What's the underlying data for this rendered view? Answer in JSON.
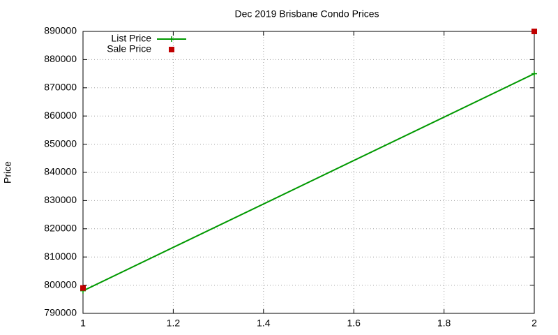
{
  "chart_data": {
    "type": "line",
    "title": "Dec 2019 Brisbane Condo Prices",
    "ylabel": "Price",
    "x": [
      1,
      2
    ],
    "series": [
      {
        "name": "List Price",
        "color": "#009900",
        "style": "linespoints",
        "values": [
          798000,
          875000
        ]
      },
      {
        "name": "Sale Price",
        "color": "#c00000",
        "style": "points",
        "values": [
          799000,
          890000
        ]
      }
    ],
    "xlim": [
      1,
      2
    ],
    "xticks": [
      1,
      1.2,
      1.4,
      1.6,
      1.8,
      2
    ],
    "ylim": [
      790000,
      890000
    ],
    "yticks": [
      790000,
      800000,
      810000,
      820000,
      830000,
      840000,
      850000,
      860000,
      870000,
      880000,
      890000
    ],
    "grid": true,
    "legend": "top-left"
  }
}
